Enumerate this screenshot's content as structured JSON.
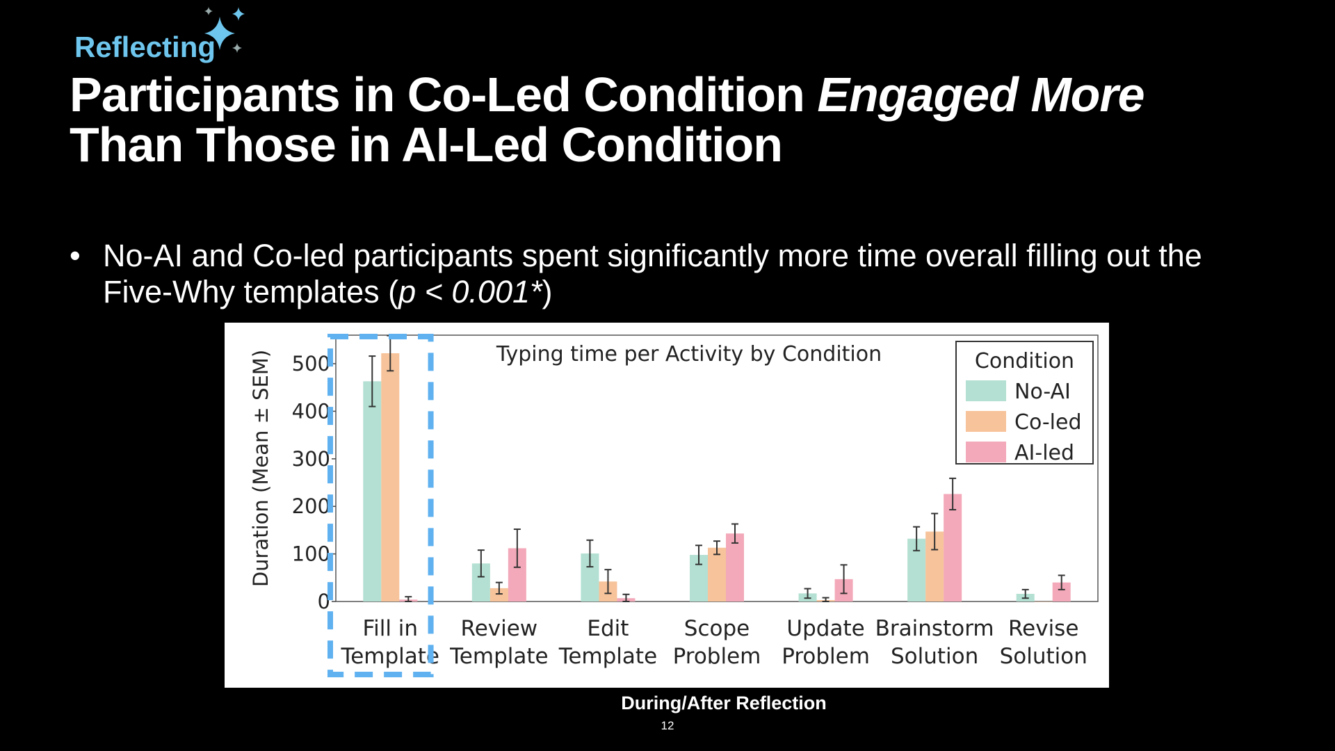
{
  "slide": {
    "section_tag": "Reflecting",
    "title_part1": "Participants in Co-Led Condition ",
    "title_emphasis": "Engaged More",
    "title_part2": "Than Those in AI-Led Condition",
    "bullet_text": "No-AI and Co-led participants spent significantly more time overall filling out the Five-Why templates (",
    "bullet_stat": "p < 0.001*",
    "bullet_close": ")",
    "caption": "During/After Reflection",
    "page_number": "12",
    "sparkle_icon": "sparkles-icon",
    "accent_color": "#6ec6ee"
  },
  "chart_data": {
    "type": "bar",
    "title": "Typing time per Activity by Condition",
    "xlabel": "",
    "ylabel": "Duration (Mean ± SEM)",
    "ylim": [
      0,
      560
    ],
    "yticks": [
      0,
      100,
      200,
      300,
      400,
      500
    ],
    "categories": [
      [
        "Fill in",
        "Template"
      ],
      [
        "Review",
        "Template"
      ],
      [
        "Edit",
        "Template"
      ],
      [
        "Scope",
        "Problem"
      ],
      [
        "Update",
        "Problem"
      ],
      [
        "Brainstorm",
        "Solution"
      ],
      [
        "Revise",
        "Solution"
      ]
    ],
    "legend_title": "Condition",
    "legend_position": "top-right",
    "grid": false,
    "highlight_category": 0,
    "series": [
      {
        "name": "No-AI",
        "color": "#b3e0d2",
        "values": [
          463,
          80,
          101,
          98,
          17,
          132,
          16
        ],
        "sem": [
          53,
          28,
          28,
          20,
          10,
          25,
          9
        ]
      },
      {
        "name": "Co-led",
        "color": "#f7c39a",
        "values": [
          522,
          28,
          42,
          113,
          3,
          147,
          0
        ],
        "sem": [
          37,
          12,
          25,
          14,
          5,
          38,
          0
        ]
      },
      {
        "name": "AI-led",
        "color": "#f3a9b9",
        "values": [
          4,
          112,
          7,
          143,
          47,
          226,
          40
        ],
        "sem": [
          6,
          40,
          8,
          20,
          30,
          33,
          15
        ]
      }
    ]
  }
}
